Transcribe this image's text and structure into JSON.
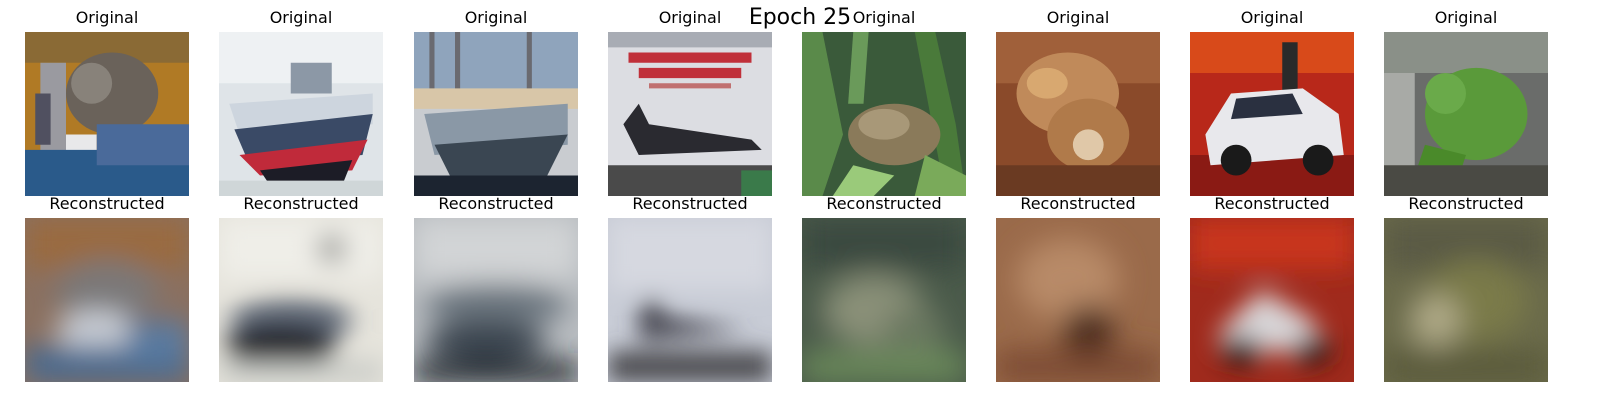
{
  "figure": {
    "title": "Epoch 25"
  },
  "rows": {
    "top_label": "Original",
    "bottom_label": "Reconstructed"
  },
  "images": [
    {
      "subject": "cat",
      "original": "cat-photo",
      "reconstructed": "cat-blur"
    },
    {
      "subject": "ship",
      "original": "ship-photo",
      "reconstructed": "ship-blur"
    },
    {
      "subject": "ship",
      "original": "ship-photo-2",
      "reconstructed": "ship-blur-2"
    },
    {
      "subject": "airplane",
      "original": "airplane-photo",
      "reconstructed": "airplane-blur"
    },
    {
      "subject": "frog",
      "original": "frog-photo",
      "reconstructed": "frog-blur"
    },
    {
      "subject": "frog",
      "original": "frog-photo-2",
      "reconstructed": "frog-blur-2"
    },
    {
      "subject": "automobile",
      "original": "car-photo",
      "reconstructed": "car-blur"
    },
    {
      "subject": "frog",
      "original": "frog-photo-3",
      "reconstructed": "frog-blur-3"
    }
  ]
}
